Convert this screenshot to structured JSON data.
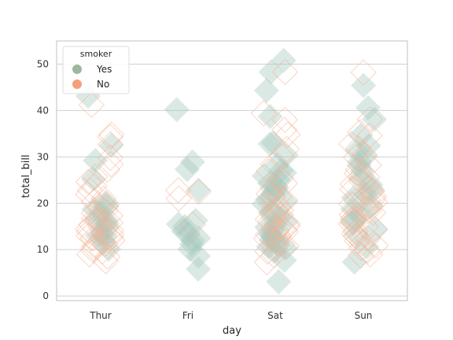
{
  "chart_data": {
    "type": "scatter",
    "style": "strip plot with jitter, diamond markers",
    "xlabel": "day",
    "ylabel": "total_bill",
    "categories": [
      "Thur",
      "Fri",
      "Sat",
      "Sun"
    ],
    "yticks": [
      0,
      10,
      20,
      30,
      40,
      50
    ],
    "ylim": [
      -1,
      55
    ],
    "grid": "horizontal",
    "legend": {
      "title": "smoker",
      "placement": "top-left"
    },
    "series": [
      {
        "name": "Yes",
        "color": "#a6c9bd",
        "legend_color": "#9cb89f",
        "points": {
          "Thur": [
            43.1,
            32.5,
            29.2,
            25.2,
            19.4,
            17.9,
            16.5,
            15.7,
            14.8,
            13.4,
            12.9,
            11.8,
            10.1,
            18.7,
            13.0,
            16.3,
            20.1
          ],
          "Fri": [
            40.2,
            28.9,
            27.3,
            22.8,
            16.3,
            15.5,
            13.4,
            12.5,
            12.0,
            11.2,
            10.1,
            8.6,
            5.8,
            15.0,
            13.9
          ],
          "Sat": [
            50.8,
            48.3,
            44.3,
            38.7,
            33.0,
            32.8,
            30.4,
            28.2,
            27.0,
            26.6,
            25.9,
            24.3,
            23.3,
            22.8,
            22.1,
            20.9,
            20.3,
            19.8,
            18.3,
            17.8,
            16.9,
            16.0,
            15.4,
            14.8,
            14.3,
            13.4,
            13.0,
            12.7,
            12.0,
            11.6,
            11.0,
            10.6,
            10.3,
            9.6,
            7.7,
            3.1,
            25.0,
            23.7
          ],
          "Sun": [
            45.4,
            40.6,
            38.1,
            34.6,
            32.4,
            31.3,
            30.1,
            29.0,
            28.2,
            25.3,
            24.0,
            22.8,
            21.2,
            19.4,
            18.7,
            17.5,
            16.5,
            15.7,
            14.3,
            13.3,
            10.6,
            7.3,
            27.0,
            22.0
          ]
        }
      },
      {
        "name": "No",
        "color": "#f6b393",
        "legend_color": "#f5a07c",
        "points": {
          "Thur": [
            41.2,
            34.8,
            34.3,
            32.7,
            29.8,
            28.4,
            27.2,
            25.7,
            24.6,
            23.7,
            22.8,
            21.9,
            21.0,
            20.3,
            19.8,
            19.1,
            18.4,
            17.9,
            17.3,
            16.7,
            16.2,
            15.8,
            15.4,
            14.9,
            14.5,
            14.1,
            13.7,
            13.3,
            13.0,
            12.7,
            12.4,
            12.0,
            11.6,
            11.2,
            10.8,
            10.3,
            9.8,
            9.6,
            9.0,
            8.5,
            7.5,
            19.3,
            15.9,
            13.9
          ],
          "Fri": [
            22.8,
            22.5,
            21.0,
            15.4
          ],
          "Sat": [
            48.3,
            39.4,
            38.0,
            35.8,
            34.8,
            31.7,
            30.1,
            28.4,
            26.9,
            25.4,
            24.3,
            23.2,
            22.0,
            21.3,
            20.7,
            20.1,
            19.7,
            19.1,
            18.5,
            18.0,
            17.5,
            17.0,
            16.5,
            16.0,
            15.6,
            15.1,
            14.7,
            14.3,
            13.8,
            13.3,
            12.9,
            12.4,
            12.0,
            11.6,
            11.2,
            10.8,
            10.3,
            9.6,
            8.8,
            7.3,
            21.5,
            18.3,
            14.0
          ],
          "Sun": [
            48.2,
            38.1,
            35.3,
            34.6,
            32.8,
            31.9,
            30.5,
            29.9,
            28.2,
            27.3,
            26.4,
            25.6,
            24.7,
            24.1,
            23.3,
            22.5,
            21.6,
            21.0,
            20.7,
            20.2,
            19.8,
            19.4,
            18.8,
            18.4,
            18.0,
            17.5,
            17.0,
            16.6,
            16.3,
            16.0,
            15.5,
            15.0,
            14.5,
            14.0,
            13.4,
            12.9,
            12.4,
            11.9,
            11.4,
            10.9,
            10.3,
            9.8,
            9.0,
            8.8,
            25.9,
            23.0,
            20.5
          ]
        }
      }
    ]
  }
}
